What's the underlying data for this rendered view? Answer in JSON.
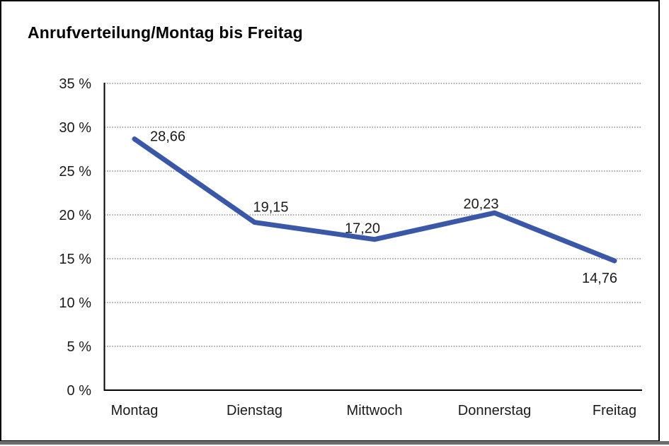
{
  "title": "Anrufverteilung/Montag bis Freitag",
  "chart_data": {
    "type": "line",
    "title": "Anrufverteilung/Montag bis Freitag",
    "categories": [
      "Montag",
      "Dienstag",
      "Mittwoch",
      "Donnerstag",
      "Freitag"
    ],
    "values": [
      28.66,
      19.15,
      17.2,
      20.23,
      14.76
    ],
    "value_labels": [
      "28,66",
      "19,15",
      "17,20",
      "20,23",
      "14,76"
    ],
    "xlabel": "",
    "ylabel": "",
    "ylim": [
      0,
      35
    ],
    "ytick_step": 5,
    "ytick_labels": [
      "0 %",
      "5 %",
      "10 %",
      "15 %",
      "20 %",
      "25 %",
      "30 %",
      "35 %"
    ],
    "grid": "horizontal-dotted",
    "legend": "none",
    "line_color": "#3A58A7",
    "axis_color": "#000000",
    "gridline_color": "#6b6b6b",
    "label_color": "#1a1a1a"
  }
}
